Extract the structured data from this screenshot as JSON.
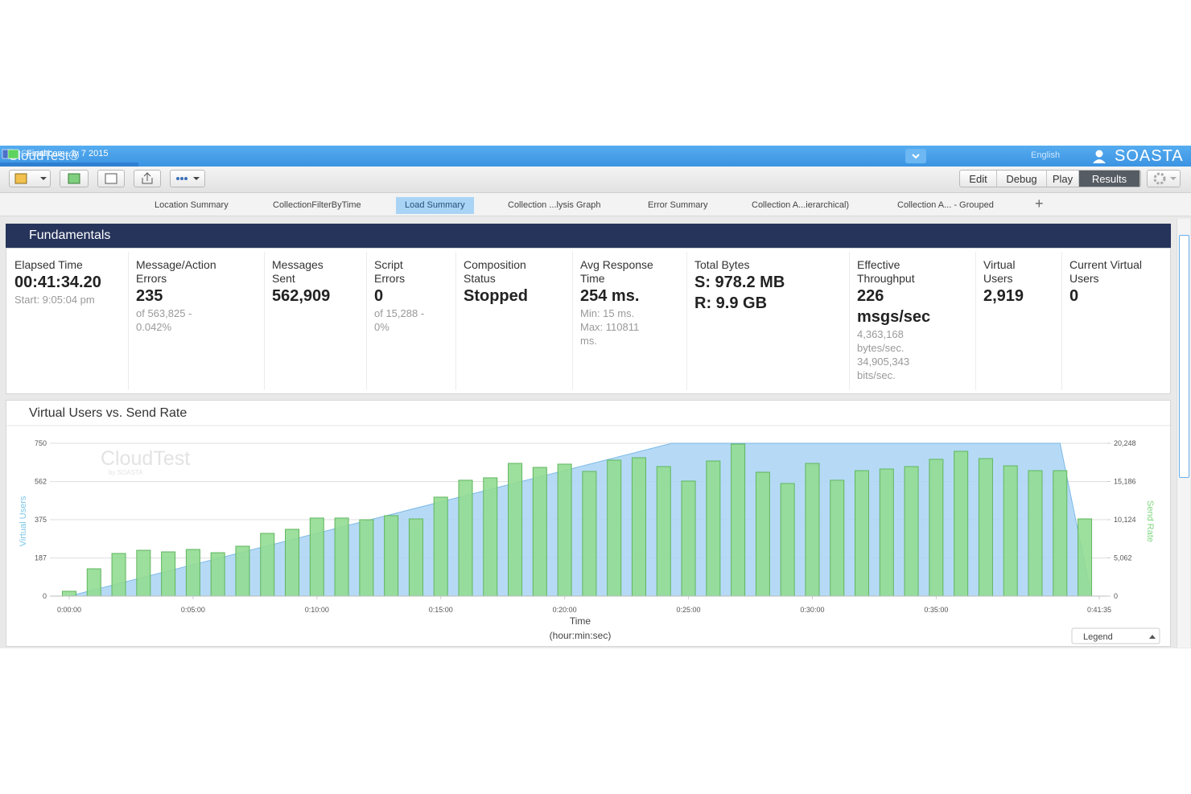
{
  "topbar": {
    "brand": "CloudTest®",
    "tabs": [
      "Central",
      "Final com...ly 7 2015"
    ],
    "active_tab": 1,
    "language": "English",
    "company": "SOASTA"
  },
  "toolbar": {
    "modes": [
      "Edit",
      "Debug",
      "Play",
      "Results"
    ],
    "active_mode": 3
  },
  "tabs": {
    "items": [
      "Location Summary",
      "CollectionFilterByTime",
      "Load Summary",
      "Collection ...lysis Graph",
      "Error Summary",
      "Collection A...ierarchical)",
      "Collection A... - Grouped"
    ],
    "active": 2
  },
  "fundamentals": {
    "title": "Fundamentals",
    "metrics": [
      {
        "label": [
          "Elapsed Time"
        ],
        "values": [
          "00:41:34.20"
        ],
        "notes": [
          "Start: 9:05:04 pm"
        ]
      },
      {
        "label": [
          "Message/Action",
          "Errors"
        ],
        "values": [
          "235"
        ],
        "notes": [
          "of 563,825 -",
          "0.042%"
        ]
      },
      {
        "label": [
          "Messages",
          "Sent"
        ],
        "values": [
          "562,909"
        ],
        "notes": []
      },
      {
        "label": [
          "Script",
          "Errors"
        ],
        "values": [
          "0"
        ],
        "notes": [
          "of 15,288 -",
          "0%"
        ]
      },
      {
        "label": [
          "Composition",
          "Status"
        ],
        "values": [
          "Stopped"
        ],
        "notes": []
      },
      {
        "label": [
          "Avg Response",
          "Time"
        ],
        "values": [
          "254 ms."
        ],
        "notes": [
          "Min: 15 ms.",
          "Max: 110811",
          "ms."
        ]
      },
      {
        "label": [
          "Total Bytes"
        ],
        "values": [
          "S: 978.2 MB",
          "R: 9.9 GB"
        ],
        "notes": []
      },
      {
        "label": [
          "Effective",
          "Throughput"
        ],
        "values": [
          "226",
          "msgs/sec"
        ],
        "notes": [
          "4,363,168",
          "bytes/sec.",
          "34,905,343",
          "bits/sec."
        ]
      },
      {
        "label": [
          "Virtual",
          "Users"
        ],
        "values": [
          "2,919"
        ],
        "notes": []
      },
      {
        "label": [
          "Current Virtual",
          "Users"
        ],
        "values": [
          "0"
        ],
        "notes": []
      }
    ]
  },
  "chart_data": {
    "type": "combo",
    "title": "Virtual Users vs. Send Rate",
    "watermark": [
      "CloudTest",
      "by SOASTA"
    ],
    "xlabel": [
      "Time",
      "(hour:min:sec)"
    ],
    "ylabel": "Virtual Users",
    "y2label": "Send Rate",
    "legend_button": "Legend",
    "xlim": [
      0,
      2495
    ],
    "xticks": [
      {
        "value": 0,
        "label": "0:00:00"
      },
      {
        "value": 300,
        "label": "0:05:00"
      },
      {
        "value": 600,
        "label": "0:10:00"
      },
      {
        "value": 900,
        "label": "0:15:00"
      },
      {
        "value": 1200,
        "label": "0:20:00"
      },
      {
        "value": 1500,
        "label": "0:25:00"
      },
      {
        "value": 1800,
        "label": "0:30:00"
      },
      {
        "value": 2100,
        "label": "0:35:00"
      },
      {
        "value": 2495,
        "label": "0:41:35"
      }
    ],
    "ylim": [
      0,
      750
    ],
    "yticks": [
      0,
      187,
      375,
      562,
      750
    ],
    "y2lim": [
      0,
      20248
    ],
    "y2ticks": [
      0,
      {
        "value": 5062,
        "label": "5,062"
      },
      {
        "value": 10124,
        "label": "10,124"
      },
      {
        "value": 15186,
        "label": "15,186"
      },
      {
        "value": 20248,
        "label": "20,248"
      }
    ],
    "grid": true,
    "series": [
      {
        "kind": "area",
        "color": "#a9d3f5",
        "x": [
          0,
          1460,
          2400,
          2476
        ],
        "values": [
          0,
          750,
          750,
          0
        ]
      },
      {
        "kind": "bar",
        "axis": "y2",
        "color": "#92dc92",
        "x": [
          0,
          60,
          120,
          180,
          240,
          300,
          360,
          420,
          480,
          540,
          600,
          660,
          720,
          780,
          840,
          900,
          960,
          1020,
          1080,
          1140,
          1200,
          1260,
          1320,
          1380,
          1440,
          1500,
          1560,
          1620,
          1680,
          1740,
          1800,
          1860,
          1920,
          1980,
          2040,
          2100,
          2160,
          2220,
          2280,
          2340,
          2400,
          2460
        ],
        "values": [
          640,
          3620,
          5650,
          6070,
          5860,
          6180,
          5750,
          6610,
          8310,
          8850,
          10340,
          10340,
          10120,
          10660,
          10230,
          13110,
          15350,
          15670,
          17580,
          17050,
          17480,
          16520,
          18010,
          18330,
          17160,
          15240,
          17900,
          20140,
          16410,
          14920,
          17580,
          15350,
          16620,
          16840,
          17160,
          18120,
          19180,
          18220,
          17260,
          16620,
          16620,
          10230
        ]
      }
    ]
  }
}
